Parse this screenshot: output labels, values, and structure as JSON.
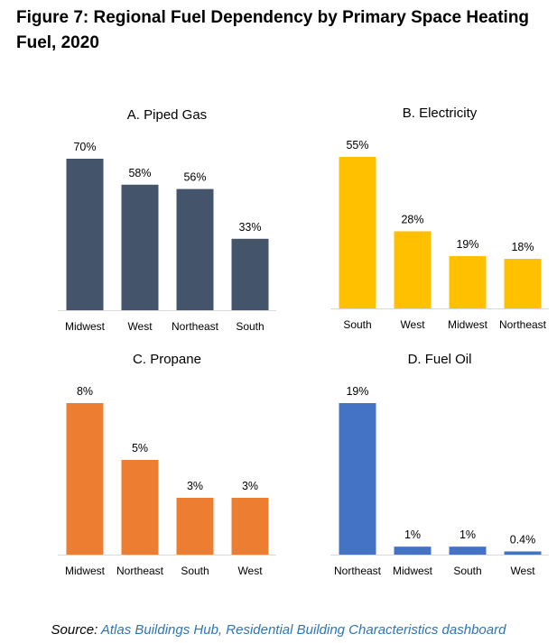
{
  "figure": {
    "title": "Figure 7: Regional Fuel Dependency by Primary Space Heating Fuel, 2020"
  },
  "source": {
    "prefix": "Source: ",
    "link_text": "Atlas Buildings Hub, Residential Building Characteristics dashboard",
    "link_color": "#2e75b6"
  },
  "chart_data": [
    {
      "type": "bar",
      "title": "A. Piped Gas",
      "categories": [
        "Midwest",
        "West",
        "Northeast",
        "South"
      ],
      "values": [
        70,
        58,
        56,
        33
      ],
      "labels": [
        "70%",
        "58%",
        "56%",
        "33%"
      ],
      "ylim": [
        0,
        70
      ],
      "color": "#44546a",
      "grid": false
    },
    {
      "type": "bar",
      "title": "B. Electricity",
      "categories": [
        "South",
        "West",
        "Midwest",
        "Northeast"
      ],
      "values": [
        55,
        28,
        19,
        18
      ],
      "labels": [
        "55%",
        "28%",
        "19%",
        "18%"
      ],
      "ylim": [
        0,
        55
      ],
      "color": "#ffc000",
      "grid": false
    },
    {
      "type": "bar",
      "title": "C. Propane",
      "categories": [
        "Midwest",
        "Northeast",
        "South",
        "West"
      ],
      "values": [
        8,
        5,
        3,
        3
      ],
      "labels": [
        "8%",
        "5%",
        "3%",
        "3%"
      ],
      "ylim": [
        0,
        8
      ],
      "color": "#ed7d31",
      "grid": false
    },
    {
      "type": "bar",
      "title": "D. Fuel Oil",
      "categories": [
        "Northeast",
        "Midwest",
        "South",
        "West"
      ],
      "values": [
        19,
        1,
        1,
        0.4
      ],
      "labels": [
        "19%",
        "1%",
        "1%",
        "0.4%"
      ],
      "ylim": [
        0,
        19
      ],
      "color": "#4472c4",
      "grid": false
    }
  ]
}
